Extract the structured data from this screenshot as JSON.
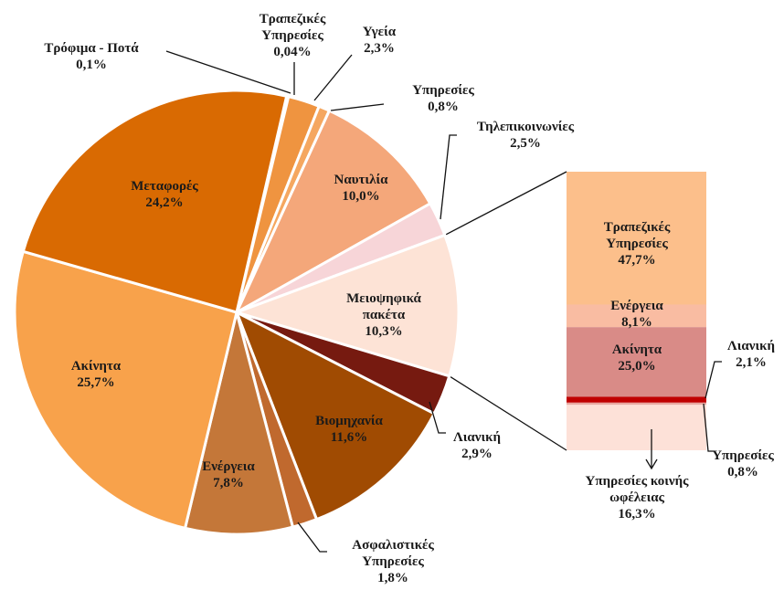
{
  "chart_data": [
    {
      "type": "pie",
      "categories": [
        "Τρόφιμα - Ποτά",
        "Τραπεζικές Υπηρεσίες",
        "Υγεία",
        "Υπηρεσίες",
        "Ναυτιλία",
        "Τηλεπικοινωνίες",
        "Μειοψηφικά πακέτα",
        "Λιανική",
        "Βιομηχανία",
        "Ασφαλιστικές Υπηρεσίες",
        "Ενέργεια",
        "Ακίνητα",
        "Μεταφορές"
      ],
      "values": [
        0.1,
        0.04,
        2.3,
        0.8,
        10.0,
        2.5,
        10.3,
        2.9,
        11.6,
        1.8,
        7.8,
        25.7,
        24.2
      ],
      "value_labels": [
        "0,1%",
        "0,04%",
        "2,3%",
        "0,8%",
        "10,0%",
        "2,5%",
        "10,3%",
        "2,9%",
        "11,6%",
        "1,8%",
        "7,8%",
        "25,7%",
        "24,2%"
      ],
      "colors": [
        "#e58a3a",
        "#f2a155",
        "#ef9440",
        "#f5a760",
        "#f4a77a",
        "#f7d5d8",
        "#fde3d6",
        "#761a10",
        "#a04b02",
        "#c0692e",
        "#c47739",
        "#f8a24b",
        "#d96a02"
      ]
    },
    {
      "type": "stacked_bar",
      "categories": [
        "Τραπεζικές Υπηρεσίες",
        "Ενέργεια",
        "Ακίνητα",
        "Λιανική",
        "Υπηρεσίες",
        "Υπηρεσίες κοινής ωφέλειας"
      ],
      "values": [
        47.7,
        8.1,
        25.0,
        2.1,
        0.8,
        16.3
      ],
      "value_labels": [
        "47,7%",
        "8,1%",
        "25,0%",
        "2,1%",
        "0,8%",
        "16,3%"
      ],
      "colors": [
        "#fcbf8b",
        "#f9bca2",
        "#d98b87",
        "#c00000",
        "#e9a7a0",
        "#fde1d8"
      ]
    }
  ]
}
